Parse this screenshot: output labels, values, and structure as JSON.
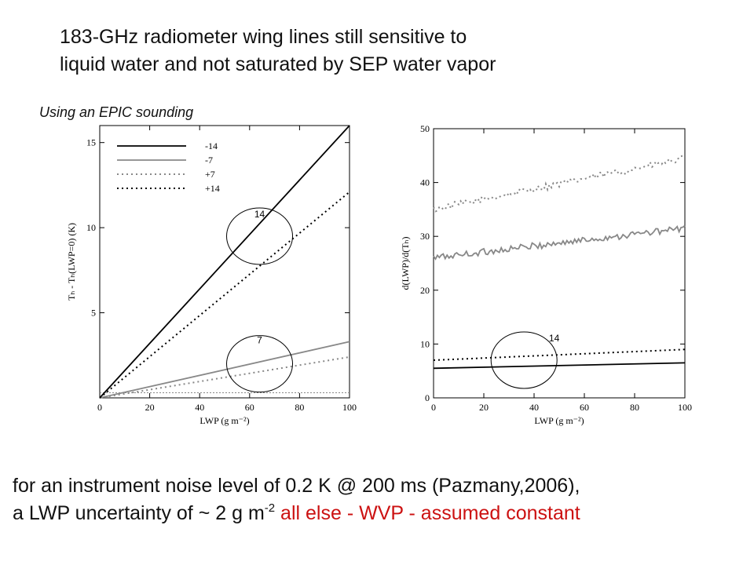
{
  "slide": {
    "title_lines": [
      "183-GHz radiometer wing lines still sensitive to",
      "liquid water and not saturated by SEP water vapor"
    ],
    "subtitle": "Using an EPIC sounding",
    "bottom": {
      "line1": "for an instrument noise level of 0.2 K @ 200 ms (Pazmany,2006),",
      "line2_pre": "a LWP uncertainty of ~ 2 g m",
      "line2_sup": "-2",
      "line2_red": " all else - WVP - assumed constant"
    },
    "colors": {
      "accent_red": "#cc1111",
      "gray": "#888888"
    }
  },
  "chart_data": [
    {
      "type": "line",
      "xlabel": "LWP (g m⁻²)",
      "ylabel": "Tₕ - Tₕ(LWP=0)  (K)",
      "xlim": [
        0,
        100
      ],
      "ylim": [
        0,
        16
      ],
      "xticks": [
        0,
        20,
        40,
        60,
        80,
        100
      ],
      "yticks": [
        5,
        10,
        15
      ],
      "legend": "top-left",
      "series": [
        {
          "name": "-14",
          "color": "#000000",
          "dash": "solid",
          "x": [
            0,
            100
          ],
          "y": [
            0,
            16
          ]
        },
        {
          "name": "-7",
          "color": "#888888",
          "dash": "solid",
          "x": [
            0,
            100
          ],
          "y": [
            0,
            3.3
          ]
        },
        {
          "name": "+7",
          "color": "#888888",
          "dash": "dotted",
          "x": [
            0,
            100
          ],
          "y": [
            0,
            2.4
          ]
        },
        {
          "name": "+14",
          "color": "#000000",
          "dash": "dotted",
          "x": [
            0,
            100
          ],
          "y": [
            0,
            12.1
          ]
        }
      ],
      "baseline": {
        "y": 0.3,
        "color": "#888888"
      },
      "annotations": [
        {
          "label": "14",
          "cx": 64,
          "cy": 9.5,
          "label_x": 64,
          "label_y": 10.6
        },
        {
          "label": "7",
          "cx": 64,
          "cy": 2.0,
          "label_x": 64,
          "label_y": 3.2
        }
      ]
    },
    {
      "type": "line",
      "xlabel": "LWP (g m⁻²)",
      "ylabel": "d(LWP)/d(Tₕ)",
      "xlim": [
        0,
        100
      ],
      "ylim": [
        0,
        50
      ],
      "xticks": [
        0,
        20,
        40,
        60,
        80,
        100
      ],
      "yticks": [
        0,
        10,
        20,
        30,
        40,
        50
      ],
      "series": [
        {
          "name": "",
          "color": "#888888",
          "dash": "dotted",
          "noisy": true,
          "x": [
            0,
            100
          ],
          "y": [
            35,
            44.5
          ]
        },
        {
          "name": "",
          "color": "#888888",
          "dash": "solid",
          "noisy": true,
          "x": [
            0,
            100
          ],
          "y": [
            26,
            31.5
          ]
        },
        {
          "name": "",
          "color": "#000000",
          "dash": "dotted",
          "x": [
            0,
            100
          ],
          "y": [
            7,
            9
          ]
        },
        {
          "name": "",
          "color": "#000000",
          "dash": "solid",
          "x": [
            0,
            100
          ],
          "y": [
            5.5,
            6.5
          ]
        }
      ],
      "annotations": [
        {
          "label": "14",
          "cx": 36,
          "cy": 7.0,
          "label_x": 48,
          "label_y": 10.5
        }
      ]
    }
  ]
}
